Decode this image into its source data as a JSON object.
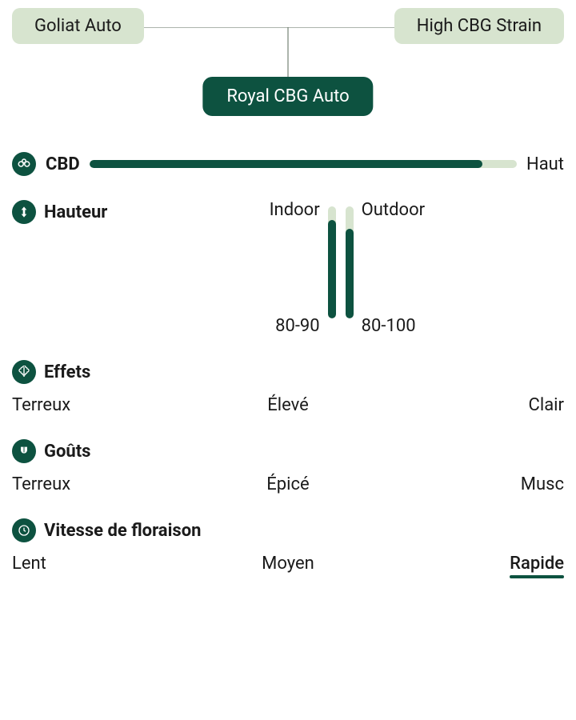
{
  "colors": {
    "accent_dark": "#0d5240",
    "accent_light": "#d7e4cf",
    "track_light": "#d7e4cf",
    "text": "#1a1a1a",
    "line": "#5a6a5a"
  },
  "genetics": {
    "parent_left": "Goliat Auto",
    "parent_right": "High CBG Strain",
    "child": "Royal CBG Auto",
    "parent_bg": "#d7e4cf",
    "parent_text": "#1a1a1a",
    "child_bg": "#0d5240",
    "child_text": "#ffffff"
  },
  "cbd": {
    "label": "CBD",
    "value_label": "Haut",
    "fill_percent": 92,
    "fill_color": "#0d5240",
    "track_color": "#d7e4cf"
  },
  "height": {
    "label": "Hauteur",
    "indoor": {
      "label": "Indoor",
      "range": "80-90",
      "fill_percent": 88,
      "fill_color": "#0d5240",
      "track_color": "#d7e4cf"
    },
    "outdoor": {
      "label": "Outdoor",
      "range": "80-100",
      "fill_percent": 80,
      "fill_color": "#0d5240",
      "track_color": "#d7e4cf"
    }
  },
  "effects": {
    "label": "Effets",
    "items": [
      "Terreux",
      "Élevé",
      "Clair"
    ]
  },
  "tastes": {
    "label": "Goûts",
    "items": [
      "Terreux",
      "Épicé",
      "Musc"
    ]
  },
  "flowering": {
    "label": "Vitesse de floraison",
    "options": [
      "Lent",
      "Moyen",
      "Rapide"
    ],
    "active_index": 2,
    "underline_color": "#0d5240"
  },
  "icons": {
    "icon_bg": "#0d5240",
    "icon_fg": "#ffffff"
  }
}
